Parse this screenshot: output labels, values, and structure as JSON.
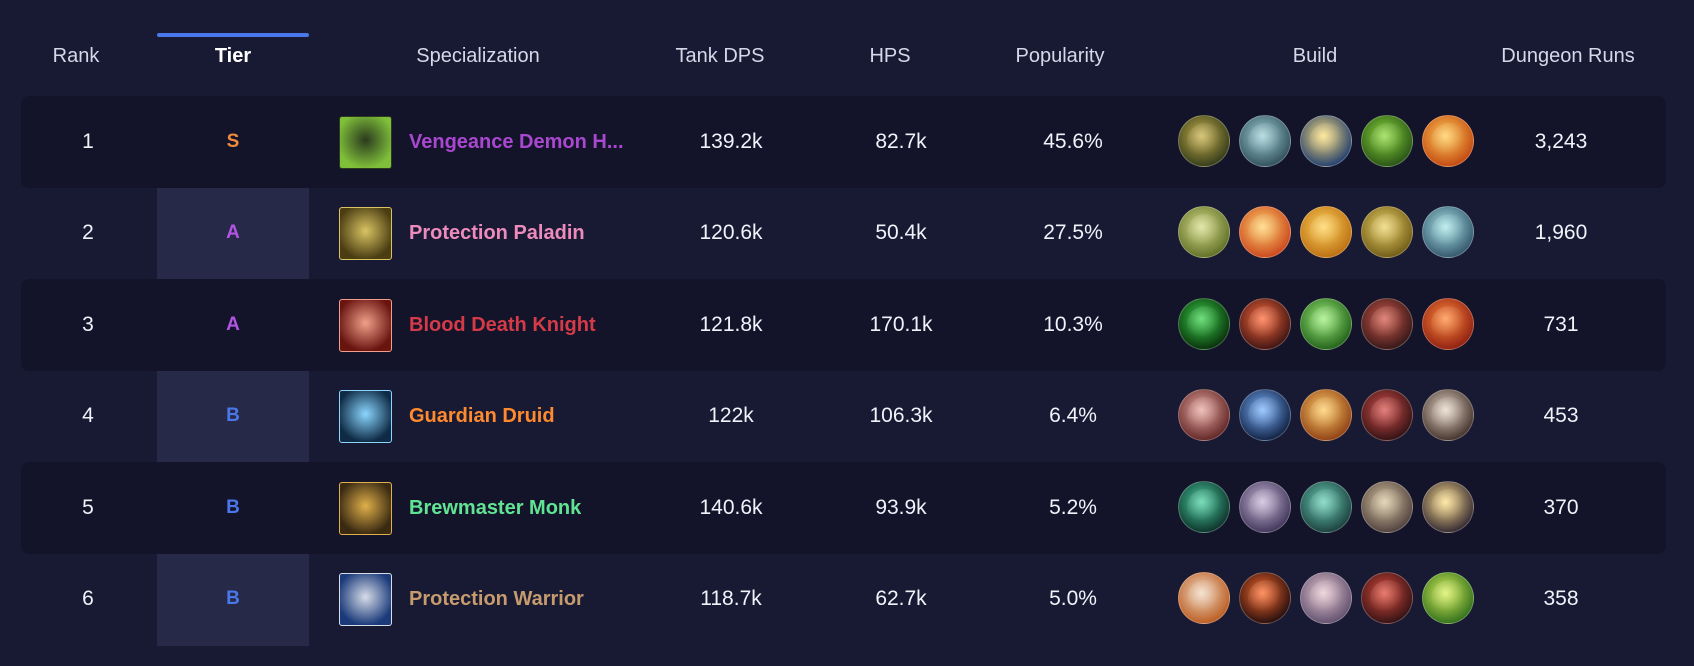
{
  "columns": {
    "rank": "Rank",
    "tier": "Tier",
    "specialization": "Specialization",
    "tank_dps": "Tank DPS",
    "hps": "HPS",
    "popularity": "Popularity",
    "build": "Build",
    "dungeon_runs": "Dungeon Runs"
  },
  "active_column": "Tier",
  "accent_color": "#4a78ea",
  "rows": [
    {
      "rank": "1",
      "tier": "S",
      "tier_color": "#f08a3c",
      "spec": "Vengeance Demon H...",
      "spec_color": "#a947d1",
      "spec_icon": "vengeance-demon-hunter-icon",
      "spec_icon_colors": [
        "#2b3a1e",
        "#7fbf3a"
      ],
      "tank_dps": "139.2k",
      "hps": "82.7k",
      "popularity": "45.6%",
      "runs": "3,243",
      "talents": [
        {
          "name": "talent-icon-1",
          "c1": "#c7b04a",
          "c2": "#2d3618"
        },
        {
          "name": "talent-icon-2",
          "c1": "#9fd0d6",
          "c2": "#2c4a55"
        },
        {
          "name": "talent-icon-3",
          "c1": "#ffe07a",
          "c2": "#17376f"
        },
        {
          "name": "talent-icon-4",
          "c1": "#8bd93b",
          "c2": "#244c14"
        },
        {
          "name": "talent-icon-5",
          "c1": "#ffcc55",
          "c2": "#c0420f"
        }
      ]
    },
    {
      "rank": "2",
      "tier": "A",
      "tier_color": "#b254e4",
      "spec": "Protection Paladin",
      "spec_color": "#ee8bbd",
      "spec_icon": "protection-paladin-icon",
      "spec_icon_colors": [
        "#d9c463",
        "#4a3d12"
      ],
      "tank_dps": "120.6k",
      "hps": "50.4k",
      "popularity": "27.5%",
      "runs": "1,960",
      "talents": [
        {
          "name": "talent-icon-1",
          "c1": "#d6dd8a",
          "c2": "#5b6a22"
        },
        {
          "name": "talent-icon-2",
          "c1": "#ffd36b",
          "c2": "#c8401b"
        },
        {
          "name": "talent-icon-3",
          "c1": "#ffd35a",
          "c2": "#b86a0f"
        },
        {
          "name": "talent-icon-4",
          "c1": "#ecd46a",
          "c2": "#6b5612"
        },
        {
          "name": "talent-icon-5",
          "c1": "#a8e6e8",
          "c2": "#2f4f66"
        }
      ]
    },
    {
      "rank": "3",
      "tier": "A",
      "tier_color": "#b254e4",
      "spec": "Blood Death Knight",
      "spec_color": "#d43a48",
      "spec_icon": "blood-death-knight-icon",
      "spec_icon_colors": [
        "#f0a08a",
        "#6a1410"
      ],
      "tank_dps": "121.8k",
      "hps": "170.1k",
      "popularity": "10.3%",
      "runs": "731",
      "talents": [
        {
          "name": "talent-icon-1",
          "c1": "#3ad14a",
          "c2": "#062808"
        },
        {
          "name": "talent-icon-2",
          "c1": "#ff6a3a",
          "c2": "#341012"
        },
        {
          "name": "talent-icon-3",
          "c1": "#9df07a",
          "c2": "#1d5a16"
        },
        {
          "name": "talent-icon-4",
          "c1": "#d45a4a",
          "c2": "#2c1416"
        },
        {
          "name": "talent-icon-5",
          "c1": "#ff8a3a",
          "c2": "#8a1a10"
        }
      ]
    },
    {
      "rank": "4",
      "tier": "B",
      "tier_color": "#4a78ea",
      "spec": "Guardian Druid",
      "spec_color": "#ff8a2e",
      "spec_icon": "guardian-druid-icon",
      "spec_icon_colors": [
        "#8ad6ff",
        "#0e2a44"
      ],
      "tank_dps": "122k",
      "hps": "106.3k",
      "popularity": "6.4%",
      "runs": "453",
      "talents": [
        {
          "name": "talent-icon-1",
          "c1": "#e9a8a0",
          "c2": "#5a2020"
        },
        {
          "name": "talent-icon-2",
          "c1": "#7ab4ff",
          "c2": "#0c1a3a"
        },
        {
          "name": "talent-icon-3",
          "c1": "#ffcc66",
          "c2": "#8a3a12"
        },
        {
          "name": "talent-icon-4",
          "c1": "#d8504a",
          "c2": "#2a0f12"
        },
        {
          "name": "talent-icon-5",
          "c1": "#e8d8c8",
          "c2": "#3a2a24"
        }
      ]
    },
    {
      "rank": "5",
      "tier": "B",
      "tier_color": "#4a78ea",
      "spec": "Brewmaster Monk",
      "spec_color": "#60e494",
      "spec_icon": "brewmaster-monk-icon",
      "spec_icon_colors": [
        "#e0b04a",
        "#3a2a12"
      ],
      "tank_dps": "140.6k",
      "hps": "93.9k",
      "popularity": "5.2%",
      "runs": "370",
      "talents": [
        {
          "name": "talent-icon-1",
          "c1": "#4ad0a0",
          "c2": "#0a2a24"
        },
        {
          "name": "talent-icon-2",
          "c1": "#c8b8d8",
          "c2": "#3a3054"
        },
        {
          "name": "talent-icon-3",
          "c1": "#6ad0b8",
          "c2": "#183838"
        },
        {
          "name": "talent-icon-4",
          "c1": "#d8c8a0",
          "c2": "#4a3a3a"
        },
        {
          "name": "talent-icon-5",
          "c1": "#ffe08a",
          "c2": "#2a2030"
        }
      ]
    },
    {
      "rank": "6",
      "tier": "B",
      "tier_color": "#4a78ea",
      "spec": "Protection Warrior",
      "spec_color": "#c69b6d",
      "spec_icon": "protection-warrior-icon",
      "spec_icon_colors": [
        "#d8dde8",
        "#1a3a7a"
      ],
      "tank_dps": "118.7k",
      "hps": "62.7k",
      "popularity": "5.0%",
      "runs": "358",
      "talents": [
        {
          "name": "talent-icon-1",
          "c1": "#f0d8c0",
          "c2": "#b8561a"
        },
        {
          "name": "talent-icon-2",
          "c1": "#ff6a2a",
          "c2": "#1a0a0e"
        },
        {
          "name": "talent-icon-3",
          "c1": "#e8c8d0",
          "c2": "#5a4a6a"
        },
        {
          "name": "talent-icon-4",
          "c1": "#e04a3a",
          "c2": "#2a1014"
        },
        {
          "name": "talent-icon-5",
          "c1": "#d8f05a",
          "c2": "#2a6a1a"
        }
      ]
    }
  ]
}
